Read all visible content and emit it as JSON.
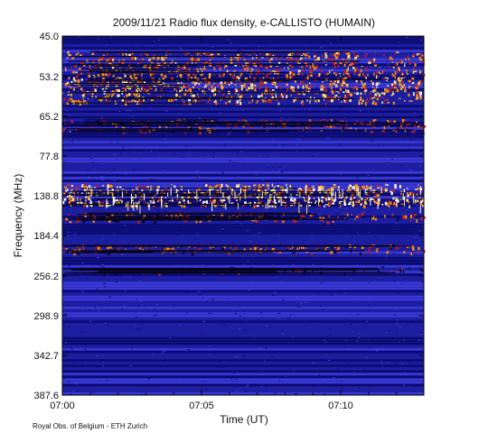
{
  "chart_data": {
    "type": "heatmap",
    "title": "2009/11/21  Radio flux density, e-CALLISTO (HUMAIN)",
    "xlabel": "Time (UT)",
    "ylabel": "Frequency (MHz)",
    "x_ticks": [
      "07:00",
      "07:05",
      "07:10"
    ],
    "y_ticks": [
      "45.0",
      "53.2",
      "65.2",
      "77.8",
      "138.8",
      "184.4",
      "256.2",
      "298.9",
      "342.7",
      "387.6"
    ],
    "xlim": [
      "07:00",
      "07:13"
    ],
    "ylim": [
      45.0,
      387.6
    ],
    "colors": {
      "background": "#1d1fa0",
      "deep": "#0a0a6e",
      "noise": "#3a3ad8",
      "hot_low": "#c02020",
      "hot_mid": "#ff8c00",
      "hot_high": "#ffe070",
      "white": "#ffffff",
      "dark": "#000010"
    },
    "intense_bands_mhz": [
      {
        "from": 48.0,
        "to": 53.0,
        "level": 0.75
      },
      {
        "from": 53.2,
        "to": 61.0,
        "level": 0.85
      },
      {
        "from": 66.0,
        "to": 70.0,
        "level": 0.55
      },
      {
        "from": 120.0,
        "to": 150.0,
        "level": 1.0
      },
      {
        "from": 158.0,
        "to": 168.0,
        "level": 0.6
      },
      {
        "from": 200.0,
        "to": 215.0,
        "level": 0.65
      },
      {
        "from": 240.0,
        "to": 250.0,
        "level": 0.35
      }
    ],
    "credit": "Royal Obs. of Belgium - ETH Zurich"
  }
}
